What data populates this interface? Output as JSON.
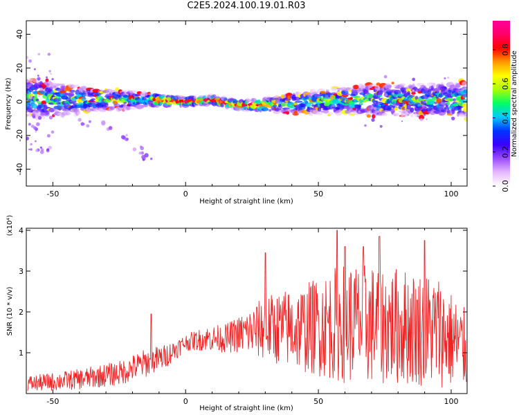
{
  "title": "C2E5.2024.100.19.01.R03",
  "chart_data": [
    {
      "type": "heatmap",
      "xlabel": "Height of straight line (km)",
      "ylabel": "Frequency (Hz)",
      "xlim": [
        -60,
        106
      ],
      "ylim": [
        -50,
        48
      ],
      "xticks": [
        -50,
        0,
        50,
        100
      ],
      "yticks": [
        40,
        20,
        0,
        -20,
        -40
      ],
      "colorbar": {
        "label": "Normalized spectral amplitude",
        "range": [
          0,
          0.97
        ],
        "ticks": [
          0.0,
          0.2,
          0.4,
          0.6,
          0.8
        ],
        "tick_labels": [
          "0.0",
          "0.2",
          "0.4",
          "0.6",
          "0.8"
        ],
        "colors": [
          "#ffffff",
          "#e6b8ff",
          "#9a4cff",
          "#3a00ff",
          "#0033ff",
          "#00c8ff",
          "#00ff66",
          "#aaff00",
          "#ffff00",
          "#ff9900",
          "#ff0000",
          "#ff0066",
          "#ff0099"
        ]
      },
      "ridge": [
        {
          "x": -58,
          "y": 2,
          "w": 10
        },
        {
          "x": -45,
          "y": 1,
          "w": 8
        },
        {
          "x": -35,
          "y": 1,
          "w": 6
        },
        {
          "x": -25,
          "y": 1,
          "w": 5
        },
        {
          "x": -12,
          "y": 1,
          "w": 3
        },
        {
          "x": 0,
          "y": 0,
          "w": 2
        },
        {
          "x": 10,
          "y": 1,
          "w": 2
        },
        {
          "x": 20,
          "y": -2,
          "w": 2
        },
        {
          "x": 30,
          "y": -2,
          "w": 3
        },
        {
          "x": 40,
          "y": -1,
          "w": 5
        },
        {
          "x": 50,
          "y": 0,
          "w": 6
        },
        {
          "x": 60,
          "y": 1,
          "w": 7
        },
        {
          "x": 75,
          "y": 1,
          "w": 8
        },
        {
          "x": 90,
          "y": 1,
          "w": 8
        },
        {
          "x": 105,
          "y": 1,
          "w": 9
        }
      ],
      "strongest_segment_x": [
        -12,
        32
      ],
      "scatter_tail": [
        {
          "x": -22,
          "y": -22
        },
        {
          "x": -18,
          "y": -28
        },
        {
          "x": -14,
          "y": -34
        },
        {
          "x": -30,
          "y": -14
        },
        {
          "x": -38,
          "y": -12
        }
      ]
    },
    {
      "type": "line",
      "xlabel": "Height of straight line (km)",
      "ylabel": "SNR (10 * v/v)",
      "y_multiplier": "(x10⁴)",
      "xlim": [
        -60,
        106
      ],
      "ylim": [
        0,
        4.05
      ],
      "xticks": [
        -50,
        0,
        50,
        100
      ],
      "yticks": [
        1,
        2,
        3,
        4
      ],
      "color": "#ee2222",
      "envelope": [
        {
          "x": -57,
          "mean": 0.25,
          "amp": 0.2
        },
        {
          "x": -40,
          "mean": 0.35,
          "amp": 0.25
        },
        {
          "x": -25,
          "mean": 0.5,
          "amp": 0.3
        },
        {
          "x": -15,
          "mean": 0.75,
          "amp": 0.35
        },
        {
          "x": -8,
          "mean": 0.9,
          "amp": 0.3
        },
        {
          "x": 0,
          "mean": 1.25,
          "amp": 0.2
        },
        {
          "x": 8,
          "mean": 1.35,
          "amp": 0.3
        },
        {
          "x": 15,
          "mean": 1.35,
          "amp": 0.35
        },
        {
          "x": 20,
          "mean": 1.45,
          "amp": 0.45
        },
        {
          "x": 30,
          "mean": 1.6,
          "amp": 0.8
        },
        {
          "x": 45,
          "mean": 1.6,
          "amp": 1.1
        },
        {
          "x": 60,
          "mean": 1.75,
          "amp": 1.5
        },
        {
          "x": 80,
          "mean": 1.65,
          "amp": 1.45
        },
        {
          "x": 95,
          "mean": 1.55,
          "amp": 1.4
        },
        {
          "x": 105,
          "mean": 1.1,
          "amp": 1.0
        }
      ],
      "peaks": [
        {
          "x": 57,
          "y": 4.0
        },
        {
          "x": 73,
          "y": 3.85
        },
        {
          "x": 60,
          "y": 3.6
        },
        {
          "x": 67,
          "y": 3.6
        },
        {
          "x": 30,
          "y": 3.45
        },
        {
          "x": 90,
          "y": 3.75
        },
        {
          "x": -13,
          "y": 1.95
        }
      ]
    }
  ]
}
